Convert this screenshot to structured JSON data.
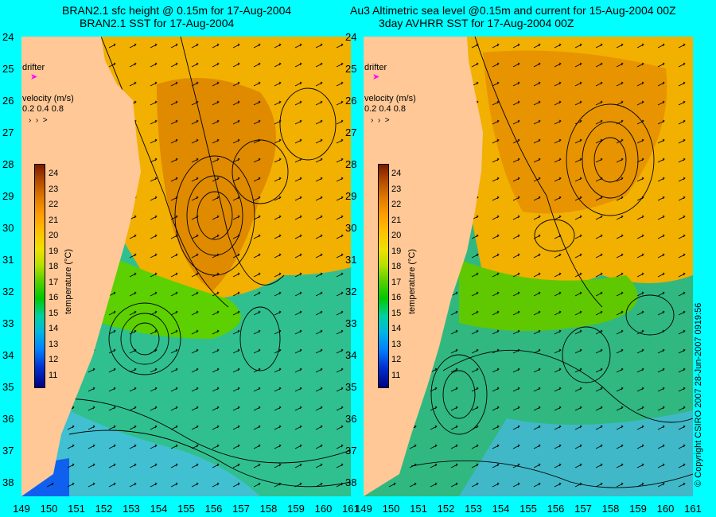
{
  "titles": {
    "left_line1": "BRAN2.1 sfc height @ 0.15m for 17-Aug-2004",
    "left_line2": "BRAN2.1 SST for 17-Aug-2004",
    "right_line1": "Au3 Altimetric sea level  @0.15m and current for 15-Aug-2004 00Z",
    "right_line2": "3day AVHRR SST for 17-Aug-2004 00Z"
  },
  "y_ticks": [
    "24",
    "25",
    "26",
    "27",
    "28",
    "29",
    "30",
    "31",
    "32",
    "33",
    "34",
    "35",
    "36",
    "37",
    "38"
  ],
  "x_ticks_left": [
    "149",
    "150",
    "151",
    "152",
    "153",
    "154",
    "155",
    "156",
    "157",
    "158",
    "159",
    "160",
    "161"
  ],
  "x_ticks_right": [
    "149",
    "150",
    "151",
    "152",
    "153",
    "154",
    "155",
    "156",
    "157",
    "158",
    "159",
    "160",
    "161"
  ],
  "legend": {
    "drifter": "drifter",
    "velocity_label": "velocity (m/s)",
    "velocity_scale": "0.2 0.4 0.8",
    "colorbar_label": "temperature (°C)",
    "colorbar_ticks": [
      "24",
      "23",
      "22",
      "21",
      "20",
      "19",
      "18",
      "17",
      "16",
      "15",
      "14",
      "13",
      "12",
      "11"
    ]
  },
  "copyright": "© Copyright CSIRO 2007   28-Jun-2007 0919:56",
  "colors": {
    "background": "#00ffff",
    "land": "#ffc896",
    "warm": "#f0a000",
    "cool": "#30c0a0"
  },
  "map": {
    "lon_range": [
      149,
      161
    ],
    "lat_range": [
      24,
      38
    ]
  }
}
